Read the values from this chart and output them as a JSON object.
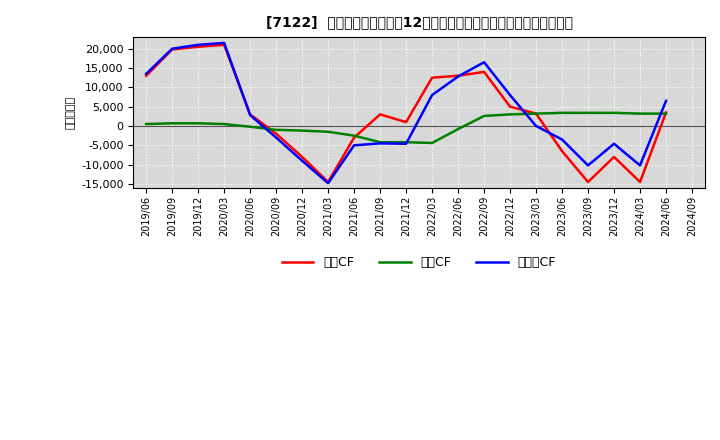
{
  "title": "[7122]  キャッシュフローの12か月移動合計の対前年同期増減額の推移",
  "ylabel": "（百万円）",
  "background_color": "#ffffff",
  "plot_background": "#d8d8d8",
  "ylim": [
    -16000,
    23000
  ],
  "yticks": [
    -15000,
    -10000,
    -5000,
    0,
    5000,
    10000,
    15000,
    20000
  ],
  "x_labels": [
    "2019/06",
    "2019/09",
    "2019/12",
    "2020/03",
    "2020/06",
    "2020/09",
    "2020/12",
    "2021/03",
    "2021/06",
    "2021/09",
    "2021/12",
    "2022/03",
    "2022/06",
    "2022/09",
    "2022/12",
    "2023/03",
    "2023/06",
    "2023/09",
    "2023/12",
    "2024/03",
    "2024/06",
    "2024/09"
  ],
  "operating_cf": [
    13000,
    19800,
    20500,
    21000,
    3000,
    -2000,
    -8000,
    -14500,
    -3000,
    3000,
    1000,
    12500,
    13000,
    14000,
    5000,
    3200,
    -6500,
    -14500,
    -8000,
    -14500,
    3500,
    null
  ],
  "investing_cf": [
    500,
    700,
    700,
    500,
    -200,
    -1000,
    -1200,
    -1500,
    -2500,
    -4200,
    -4200,
    -4400,
    -800,
    2600,
    3000,
    3200,
    3400,
    3400,
    3400,
    3200,
    3200,
    null
  ],
  "free_cf": [
    13500,
    20000,
    21000,
    21500,
    2800,
    -3000,
    -9000,
    -14800,
    -5000,
    -4500,
    -4600,
    8000,
    12800,
    16500,
    8000,
    0,
    -3500,
    -10200,
    -4600,
    -10200,
    6500,
    null
  ],
  "operating_color": "#ff0000",
  "investing_color": "#008000",
  "free_color": "#0000ff",
  "line_width": 1.8,
  "legend_labels": [
    "営業CF",
    "投資CF",
    "フリーCF"
  ]
}
